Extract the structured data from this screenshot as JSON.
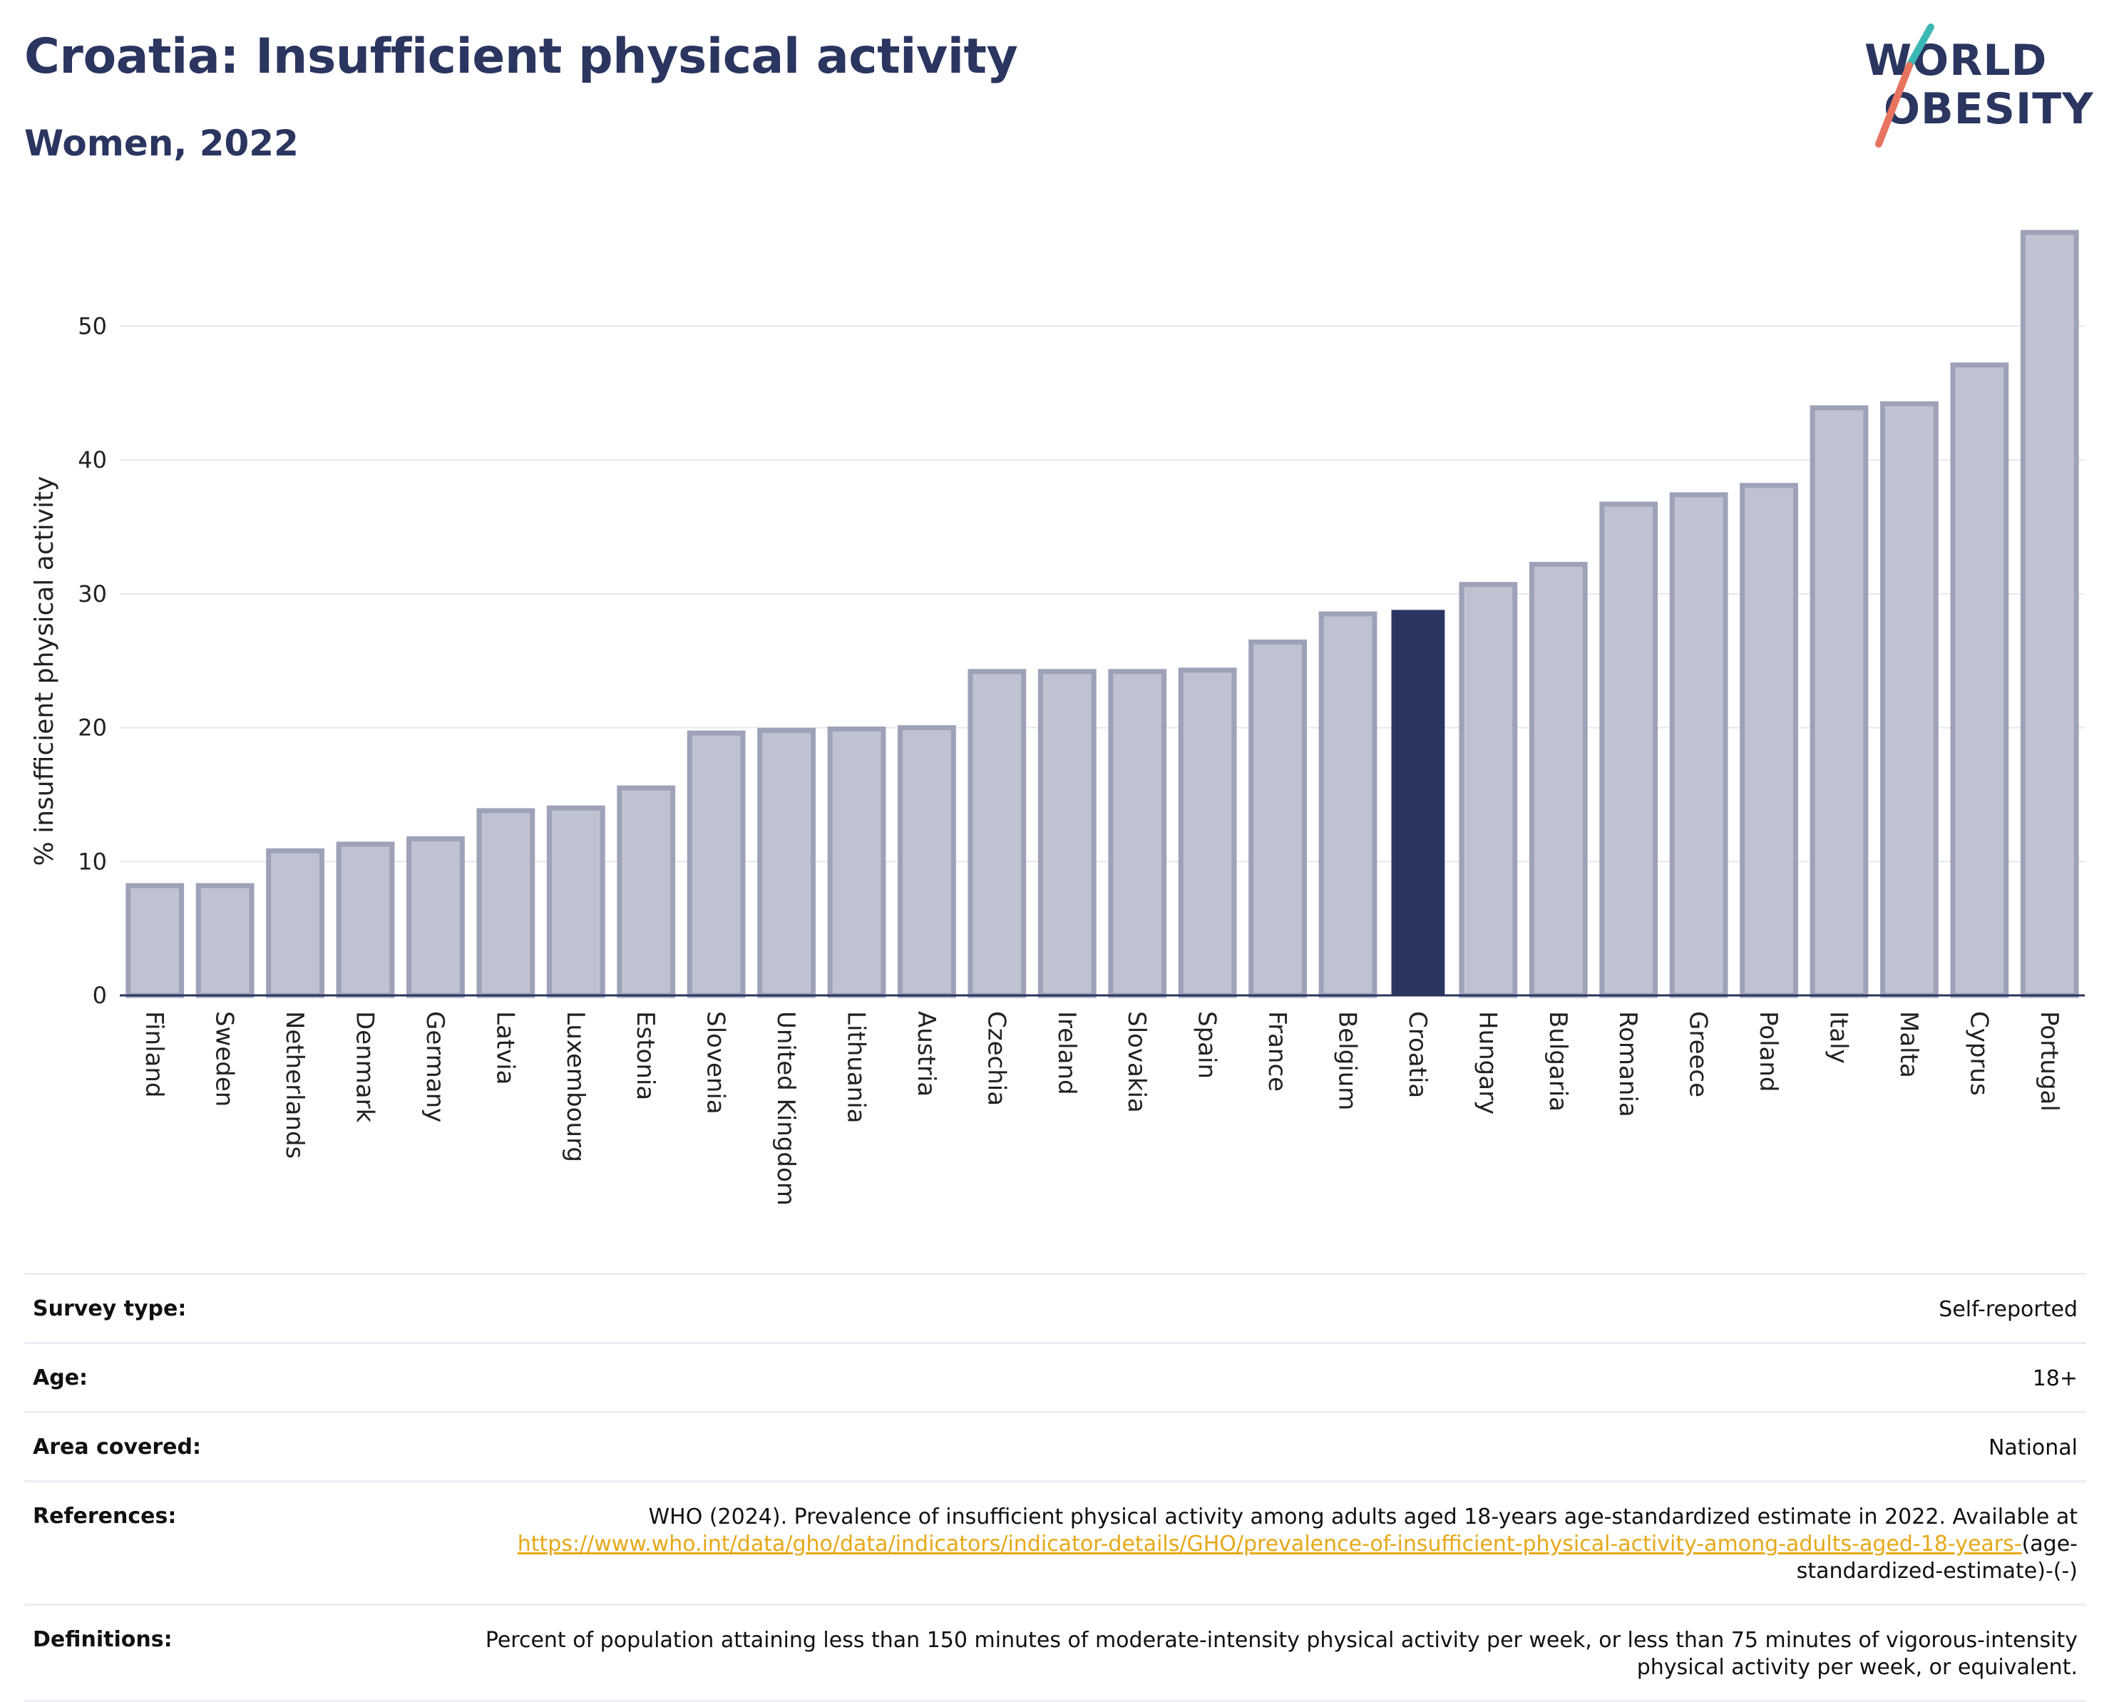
{
  "header": {
    "title": "Croatia: Insufficient physical activity",
    "subtitle": "Women, 2022"
  },
  "logo": {
    "line1": "WORLD",
    "line2": "OBESITY"
  },
  "colors": {
    "bar": "#bfc2d0",
    "bar_stroke": "#9da2b8",
    "highlight": "#2a3560",
    "text": "#2a3560",
    "grid": "#e6e8ee",
    "link": "#e6a817",
    "logo_teal": "#3bb8b4",
    "logo_coral": "#e8735f"
  },
  "chart_data": {
    "type": "bar",
    "ylabel": "% insufficient physical activity",
    "ylim": [
      0,
      57
    ],
    "yticks": [
      0,
      10,
      20,
      30,
      40,
      50
    ],
    "grid": true,
    "highlight": "Croatia",
    "categories": [
      "Finland",
      "Sweden",
      "Netherlands",
      "Denmark",
      "Germany",
      "Latvia",
      "Luxembourg",
      "Estonia",
      "Slovenia",
      "United Kingdom",
      "Lithuania",
      "Austria",
      "Czechia",
      "Ireland",
      "Slovakia",
      "Spain",
      "France",
      "Belgium",
      "Croatia",
      "Hungary",
      "Bulgaria",
      "Romania",
      "Greece",
      "Poland",
      "Italy",
      "Malta",
      "Cyprus",
      "Portugal"
    ],
    "values": [
      8.2,
      8.2,
      10.8,
      11.3,
      11.7,
      13.8,
      14.0,
      15.5,
      19.6,
      19.8,
      19.9,
      20.0,
      24.2,
      24.2,
      24.2,
      24.3,
      26.4,
      28.5,
      28.8,
      30.7,
      32.2,
      36.7,
      37.4,
      38.1,
      43.9,
      44.2,
      47.1,
      57.0
    ]
  },
  "meta": {
    "survey_type": {
      "label": "Survey type:",
      "value": "Self-reported"
    },
    "age": {
      "label": "Age:",
      "value": "18+"
    },
    "area": {
      "label": "Area covered:",
      "value": "National"
    },
    "references": {
      "label": "References:",
      "text": "WHO (2024). Prevalence of insufficient physical activity among adults aged 18-years age-standardized estimate in 2022. Available at",
      "link": "https://www.who.int/data/gho/data/indicators/indicator-details/GHO/prevalence-of-insufficient-physical-activity-among-adults-aged-18-years-",
      "suffix": "(age-standardized-estimate)-(-)"
    },
    "definitions": {
      "label": "Definitions:",
      "value": "Percent of population attaining less than 150 minutes of moderate-intensity physical activity per week, or less than 75 minutes of vigorous-intensity physical activity per week, or equivalent."
    }
  }
}
